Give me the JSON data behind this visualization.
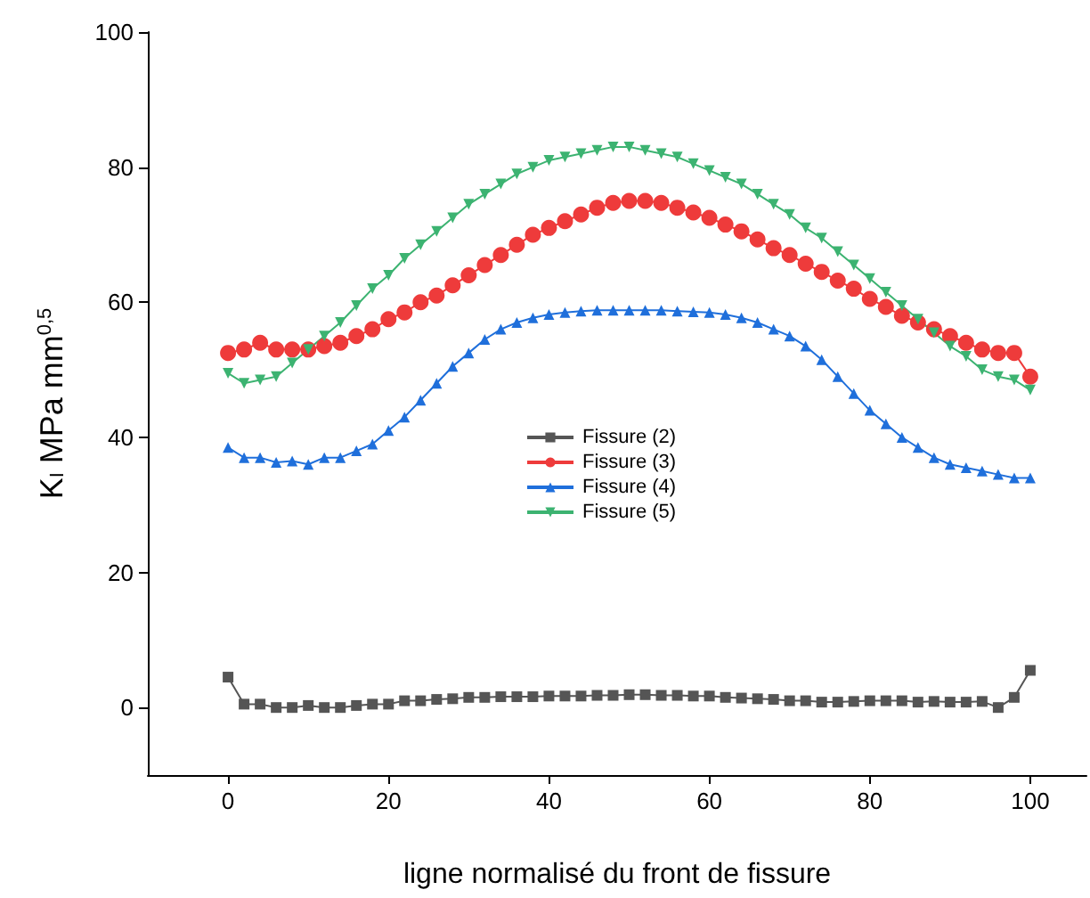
{
  "chart_data": {
    "type": "line",
    "xlabel": "ligne normalisé du front de fissure",
    "ylabel": "K$_{I}$ MPa mm$^{0,5}$",
    "x": [
      0,
      2,
      4,
      6,
      8,
      10,
      12,
      14,
      16,
      18,
      20,
      22,
      24,
      26,
      28,
      30,
      32,
      34,
      36,
      38,
      40,
      42,
      44,
      46,
      48,
      50,
      52,
      54,
      56,
      58,
      60,
      62,
      64,
      66,
      68,
      70,
      72,
      74,
      76,
      78,
      80,
      82,
      84,
      86,
      88,
      90,
      92,
      94,
      96,
      98,
      100
    ],
    "xlim": [
      -10,
      107
    ],
    "xticks": [
      0,
      20,
      40,
      60,
      80,
      100
    ],
    "ylim": [
      -10,
      100
    ],
    "yticks": [
      0,
      20,
      40,
      60,
      80,
      100
    ],
    "grid": false,
    "legend": "center",
    "series": [
      {
        "name": "Fissure (2)",
        "color": "#555555",
        "marker": "square",
        "values": [
          4.5,
          0.5,
          0.5,
          0,
          0,
          0.3,
          0,
          0,
          0.3,
          0.5,
          0.5,
          1,
          1,
          1.2,
          1.3,
          1.5,
          1.5,
          1.6,
          1.6,
          1.6,
          1.7,
          1.7,
          1.7,
          1.8,
          1.8,
          1.9,
          1.9,
          1.8,
          1.8,
          1.7,
          1.7,
          1.5,
          1.4,
          1.3,
          1.2,
          1.0,
          1.0,
          0.8,
          0.8,
          0.9,
          1.0,
          1.0,
          1.0,
          0.8,
          0.9,
          0.8,
          0.8,
          0.9,
          0,
          1.5,
          5.5
        ]
      },
      {
        "name": "Fissure (3)",
        "color": "#ee3b3b",
        "marker": "circle",
        "values": [
          52.5,
          53,
          54,
          53,
          53,
          53,
          53.5,
          54,
          55,
          56,
          57.5,
          58.5,
          60,
          61,
          62.5,
          64,
          65.5,
          67,
          68.5,
          70,
          71,
          72,
          73,
          74,
          74.7,
          75,
          75,
          74.7,
          74,
          73.3,
          72.5,
          71.5,
          70.5,
          69.3,
          68,
          67,
          65.7,
          64.5,
          63.2,
          62,
          60.5,
          59.3,
          58,
          57,
          56,
          55,
          54,
          53,
          52.5,
          52.5,
          49
        ]
      },
      {
        "name": "Fissure (4)",
        "color": "#1f6fdb",
        "marker": "triangle",
        "values": [
          38.5,
          37,
          37,
          36.3,
          36.5,
          36,
          37,
          37,
          38,
          39,
          41,
          43,
          45.5,
          48,
          50.5,
          52.5,
          54.5,
          56,
          57,
          57.7,
          58.2,
          58.5,
          58.7,
          58.8,
          58.8,
          58.8,
          58.8,
          58.8,
          58.7,
          58.6,
          58.5,
          58.2,
          57.7,
          57,
          56,
          55,
          53.5,
          51.5,
          49,
          46.5,
          44,
          42,
          40,
          38.5,
          37,
          36,
          35.5,
          35,
          34.5,
          34,
          34
        ]
      },
      {
        "name": "Fissure (5)",
        "color": "#3cb371",
        "marker": "triangle-down",
        "values": [
          49.5,
          48,
          48.5,
          49,
          51,
          53,
          55,
          57,
          59.5,
          62,
          64,
          66.5,
          68.5,
          70.5,
          72.5,
          74.5,
          76,
          77.5,
          79,
          80,
          81,
          81.5,
          82,
          82.5,
          83,
          83,
          82.5,
          82,
          81.5,
          80.5,
          79.5,
          78.5,
          77.5,
          76,
          74.5,
          73,
          71,
          69.5,
          67.5,
          65.5,
          63.5,
          61.5,
          59.5,
          57.5,
          55.5,
          53.5,
          52,
          50,
          49,
          48.5,
          47
        ]
      }
    ]
  }
}
